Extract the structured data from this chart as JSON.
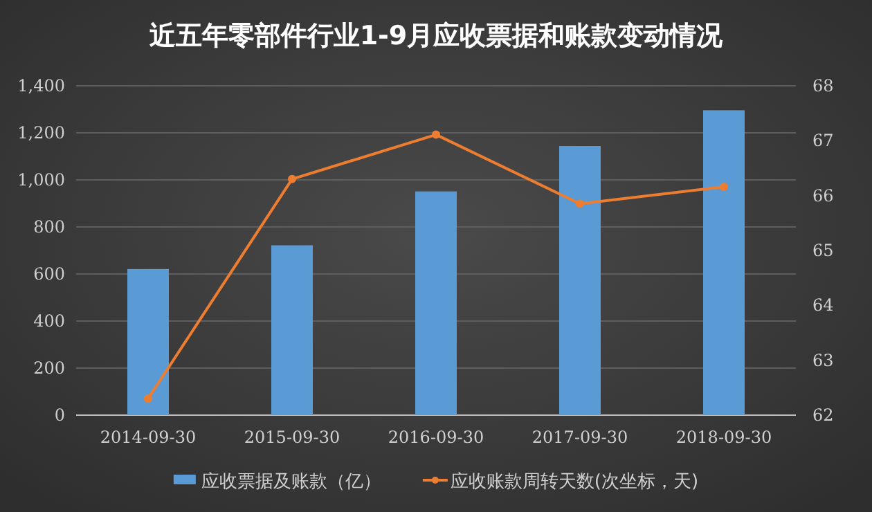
{
  "chart_data": {
    "type": "bar",
    "title": "近五年零部件行业1-9月应收票据和账款变动情况",
    "categories": [
      "2014-09-30",
      "2015-09-30",
      "2016-09-30",
      "2017-09-30",
      "2018-09-30"
    ],
    "series": [
      {
        "name": "应收票据及账款（亿）",
        "color": "#5b9bd5",
        "values": [
          621,
          722,
          951,
          1144,
          1296
        ]
      },
      {
        "name": "应收账款周转天数(次坐标，天)",
        "type": "line",
        "axis": "y2",
        "color": "#ed7d31",
        "marker": "circle",
        "values": [
          62.3,
          66.3,
          67.11,
          65.85,
          66.16
        ]
      }
    ],
    "ylim": [
      0,
      1400
    ],
    "yticks": [
      {
        "value": 0,
        "label": "0"
      },
      {
        "value": 200,
        "label": "200"
      },
      {
        "value": 400,
        "label": "400"
      },
      {
        "value": 600,
        "label": "600"
      },
      {
        "value": 800,
        "label": "800"
      },
      {
        "value": 1000,
        "label": "1,000"
      },
      {
        "value": 1200,
        "label": "1,200"
      },
      {
        "value": 1400,
        "label": "1,400"
      }
    ],
    "y2lim": [
      62,
      68
    ],
    "y2ticks": [
      62,
      63,
      64,
      65,
      66,
      67,
      68
    ],
    "grid": "y",
    "legend": "bottom"
  }
}
